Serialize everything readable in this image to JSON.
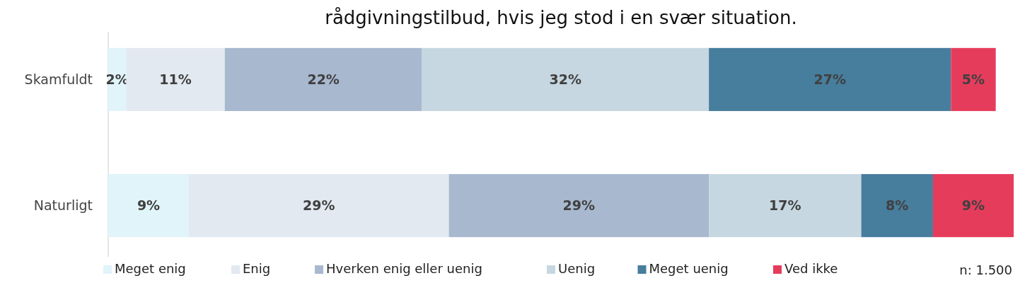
{
  "chart_data": {
    "type": "bar",
    "title": "rådgivningstilbud, hvis jeg stod i en svær situation.",
    "orientation": "horizontal",
    "stacked": true,
    "legend": "bottom",
    "xlim": [
      0,
      101
    ],
    "categories": [
      "Skamfuldt",
      "Naturligt"
    ],
    "series": [
      {
        "name": "Meget enig",
        "color": "#e0f4fa",
        "values": [
          2,
          9
        ],
        "value_labels": [
          "2%",
          "9%"
        ]
      },
      {
        "name": "Enig",
        "color": "#e2e9f0",
        "values": [
          11,
          29
        ],
        "value_labels": [
          "11%",
          "29%"
        ]
      },
      {
        "name": "Hverken enig eller uenig",
        "color": "#a8b8cf",
        "values": [
          22,
          29
        ],
        "value_labels": [
          "22%",
          "29%"
        ]
      },
      {
        "name": "Uenig",
        "color": "#c6d7e1",
        "values": [
          32,
          17
        ],
        "value_labels": [
          "32%",
          "17%"
        ]
      },
      {
        "name": "Meget uenig",
        "color": "#477d9d",
        "values": [
          27,
          8
        ],
        "value_labels": [
          "27%",
          "8%"
        ]
      },
      {
        "name": "Ved ikke",
        "color": "#e63c5c",
        "values": [
          5,
          9
        ],
        "value_labels": [
          "5%",
          "9%"
        ]
      }
    ],
    "annotations": [
      "n: 1.500"
    ]
  }
}
